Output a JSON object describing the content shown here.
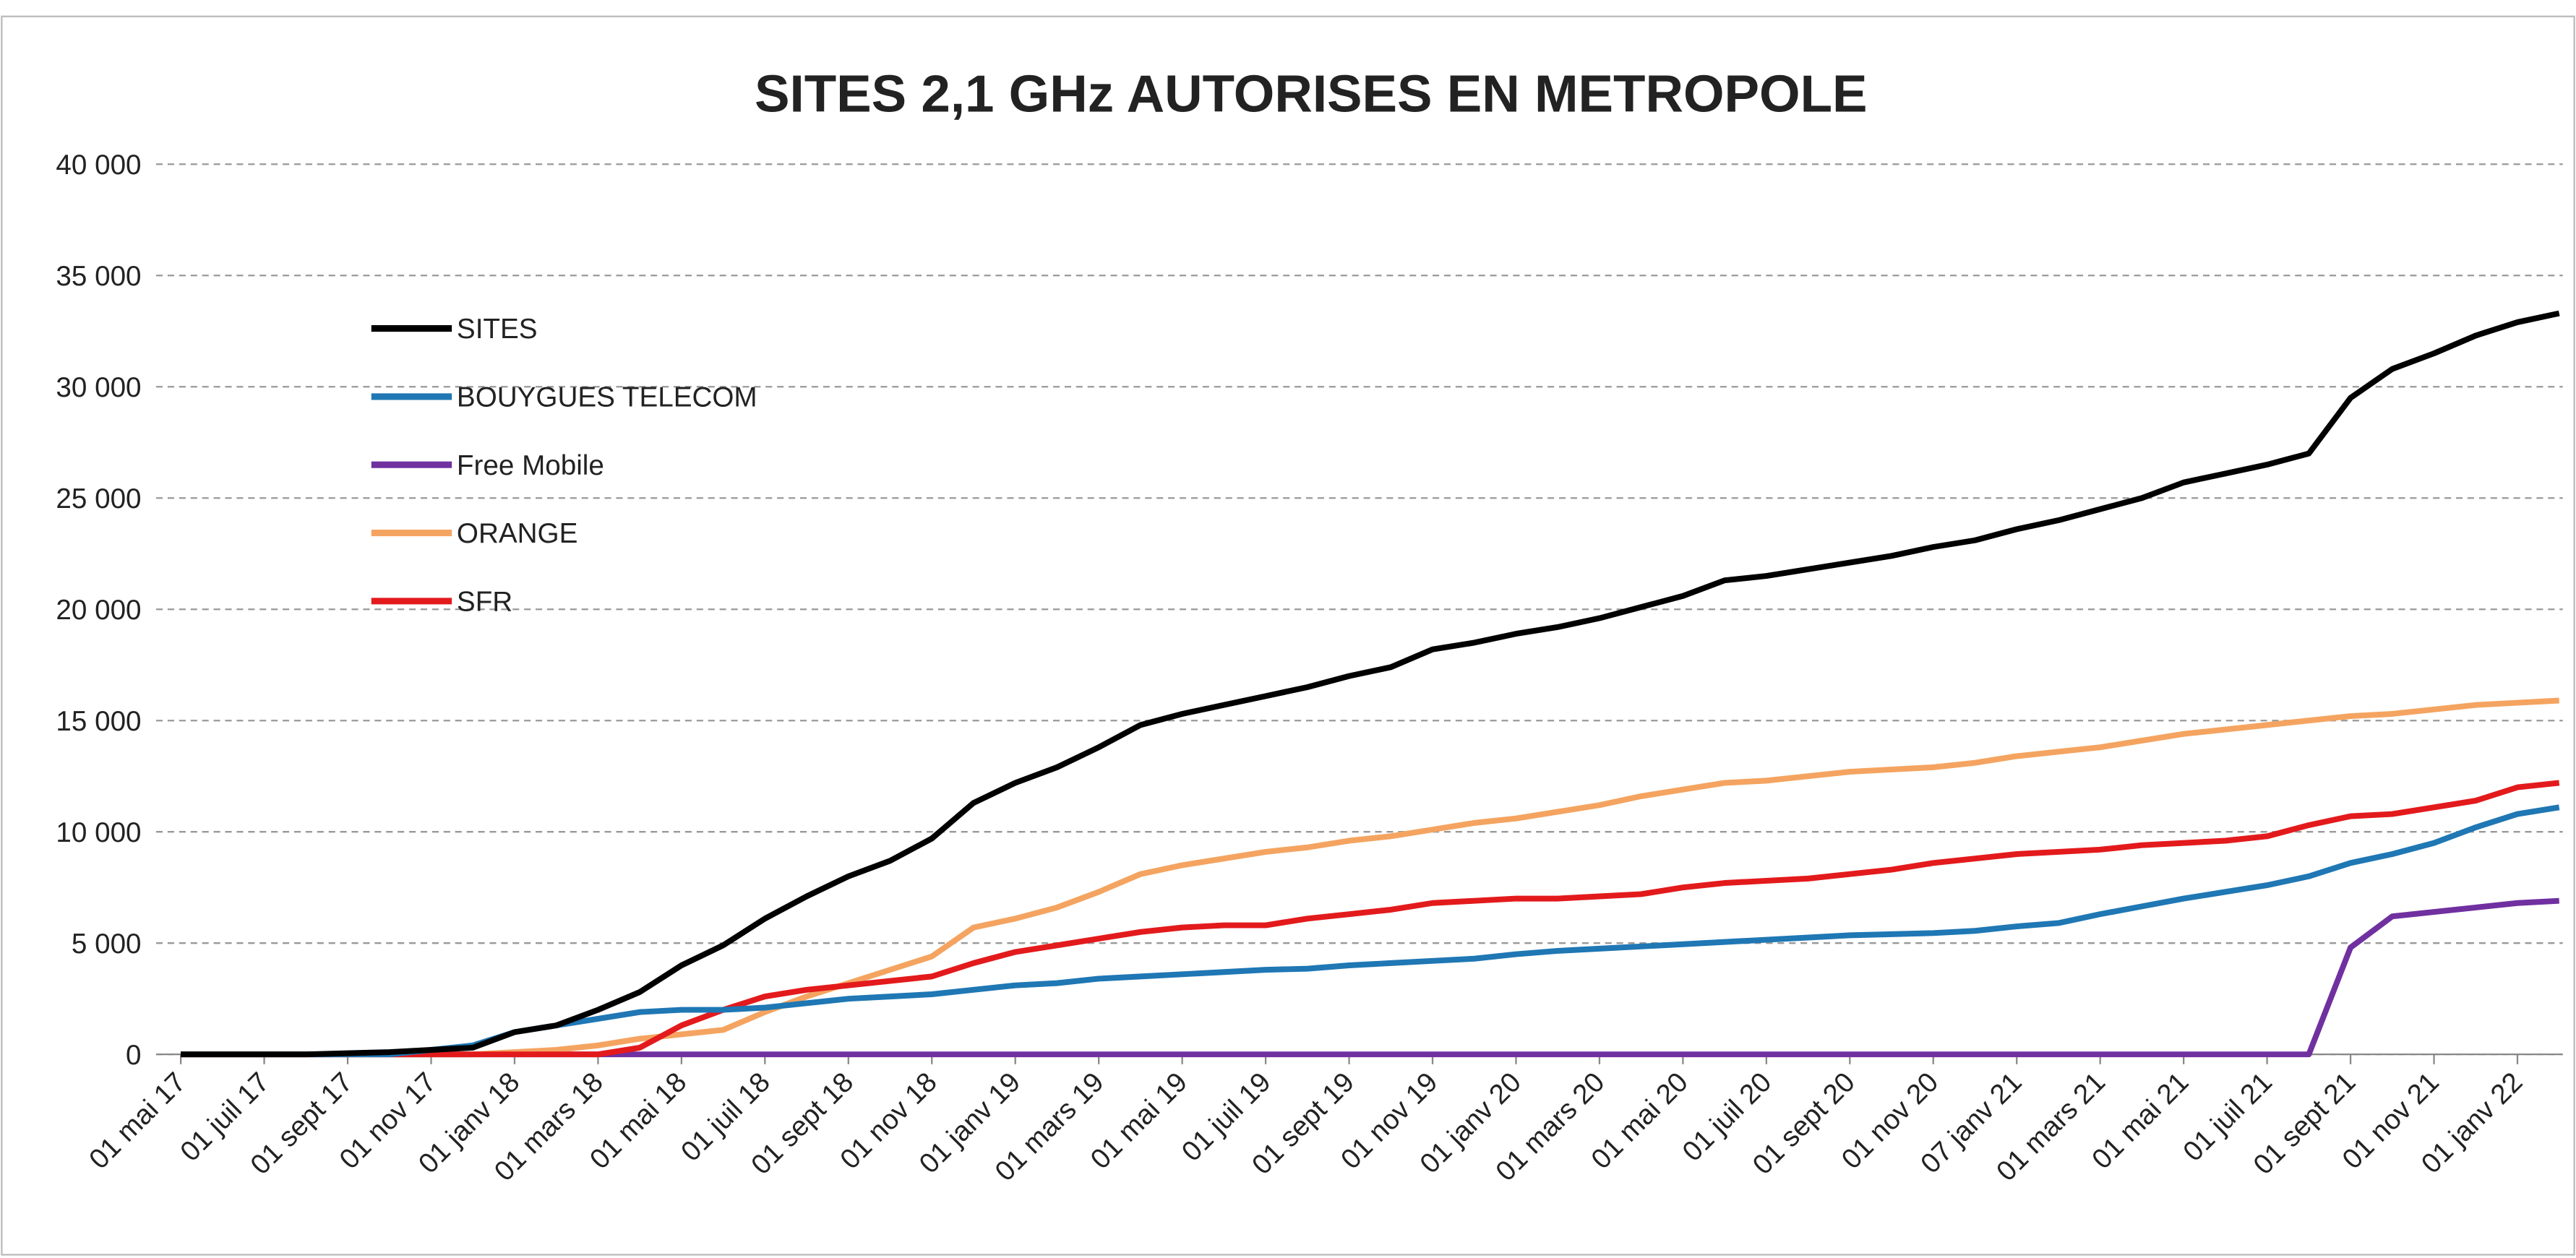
{
  "chart_data": {
    "type": "line",
    "title": "SITES 2,1 GHz AUTORISES EN METROPOLE",
    "categories": [
      "01 mai 17",
      null,
      "01 juil 17",
      null,
      "01 sept 17",
      null,
      "01 nov 17",
      null,
      "01 janv 18",
      null,
      "01 mars 18",
      null,
      "01 mai 18",
      null,
      "01 juil 18",
      null,
      "01 sept 18",
      null,
      "01 nov 18",
      null,
      "01 janv 19",
      null,
      "01 mars 19",
      null,
      "01 mai 19",
      null,
      "01 juil 19",
      null,
      "01 sept 19",
      null,
      "01 nov 19",
      null,
      "01 janv 20",
      null,
      "01 mars 20",
      null,
      "01 mai 20",
      null,
      "01 juil 20",
      null,
      "01 sept 20",
      null,
      "01 nov 20",
      null,
      "07 janv 21",
      null,
      "01 mars 21",
      null,
      "01 mai 21",
      null,
      "01 juil 21",
      null,
      "01 sept 21",
      null,
      "01 nov 21",
      null,
      "01 janv 22",
      null
    ],
    "series": [
      {
        "name": "SITES",
        "color": "#000000",
        "values": [
          0,
          0,
          0,
          0,
          50,
          100,
          200,
          300,
          1000,
          1300,
          2000,
          2800,
          4000,
          4900,
          6100,
          7100,
          8000,
          8700,
          9700,
          11300,
          12200,
          12900,
          13800,
          14800,
          15300,
          15700,
          16100,
          16500,
          17000,
          17400,
          18200,
          18500,
          18900,
          19200,
          19600,
          20100,
          20600,
          21300,
          21500,
          21800,
          22100,
          22400,
          22800,
          23100,
          23600,
          24000,
          24500,
          25000,
          25700,
          26100,
          26500,
          27000,
          29500,
          30800,
          31500,
          32300,
          32900,
          33300
        ]
      },
      {
        "name": "BOUYGUES TELECOM",
        "color": "#1f77b4",
        "values": [
          0,
          0,
          0,
          0,
          0,
          0,
          200,
          400,
          1000,
          1300,
          1600,
          1900,
          2000,
          2000,
          2100,
          2300,
          2500,
          2600,
          2700,
          2900,
          3100,
          3200,
          3400,
          3500,
          3600,
          3700,
          3800,
          3850,
          4000,
          4100,
          4200,
          4300,
          4500,
          4650,
          4750,
          4850,
          4950,
          5050,
          5150,
          5250,
          5350,
          5400,
          5450,
          5550,
          5750,
          5900,
          6300,
          6650,
          7000,
          7300,
          7600,
          8000,
          8600,
          9000,
          9500,
          10200,
          10800,
          11100
        ]
      },
      {
        "name": "Free Mobile",
        "color": "#7030a0",
        "values": [
          0,
          0,
          0,
          0,
          0,
          0,
          0,
          0,
          0,
          0,
          0,
          0,
          0,
          0,
          0,
          0,
          0,
          0,
          0,
          0,
          0,
          0,
          0,
          0,
          0,
          0,
          0,
          0,
          0,
          0,
          0,
          0,
          0,
          0,
          0,
          0,
          0,
          0,
          0,
          0,
          0,
          0,
          0,
          0,
          0,
          0,
          0,
          0,
          0,
          0,
          0,
          0,
          4800,
          6200,
          6400,
          6600,
          6800,
          6900
        ]
      },
      {
        "name": "ORANGE",
        "color": "#f4a460",
        "values": [
          0,
          0,
          0,
          0,
          0,
          0,
          0,
          0,
          100,
          200,
          400,
          700,
          900,
          1100,
          1900,
          2600,
          3200,
          3800,
          4400,
          5700,
          6100,
          6600,
          7300,
          8100,
          8500,
          8800,
          9100,
          9300,
          9600,
          9800,
          10100,
          10400,
          10600,
          10900,
          11200,
          11600,
          11900,
          12200,
          12300,
          12500,
          12700,
          12800,
          12900,
          13100,
          13400,
          13600,
          13800,
          14100,
          14400,
          14600,
          14800,
          15000,
          15200,
          15300,
          15500,
          15700,
          15800,
          15900
        ]
      },
      {
        "name": "SFR",
        "color": "#e31a1c",
        "values": [
          0,
          0,
          0,
          0,
          0,
          0,
          0,
          0,
          0,
          0,
          0,
          300,
          1300,
          2000,
          2600,
          2900,
          3100,
          3300,
          3500,
          4100,
          4600,
          4900,
          5200,
          5500,
          5700,
          5800,
          5800,
          6100,
          6300,
          6500,
          6800,
          6900,
          7000,
          7000,
          7100,
          7200,
          7500,
          7700,
          7800,
          7900,
          8100,
          8300,
          8600,
          8800,
          9000,
          9100,
          9200,
          9400,
          9500,
          9600,
          9800,
          10300,
          10700,
          10800,
          11100,
          11400,
          12000,
          12200
        ]
      }
    ],
    "ylim": [
      0,
      40000
    ],
    "yticks": [
      0,
      {
        "value": 5000,
        "label": "5 000"
      },
      {
        "value": 10000,
        "label": "10 000"
      },
      {
        "value": 15000,
        "label": "15 000"
      },
      {
        "value": 20000,
        "label": "20 000"
      },
      {
        "value": 25000,
        "label": "25 000"
      },
      {
        "value": 30000,
        "label": "30 000"
      },
      {
        "value": 35000,
        "label": "35 000"
      },
      {
        "value": 40000,
        "label": "40 000"
      }
    ],
    "grid": true,
    "legend": "upper left"
  }
}
